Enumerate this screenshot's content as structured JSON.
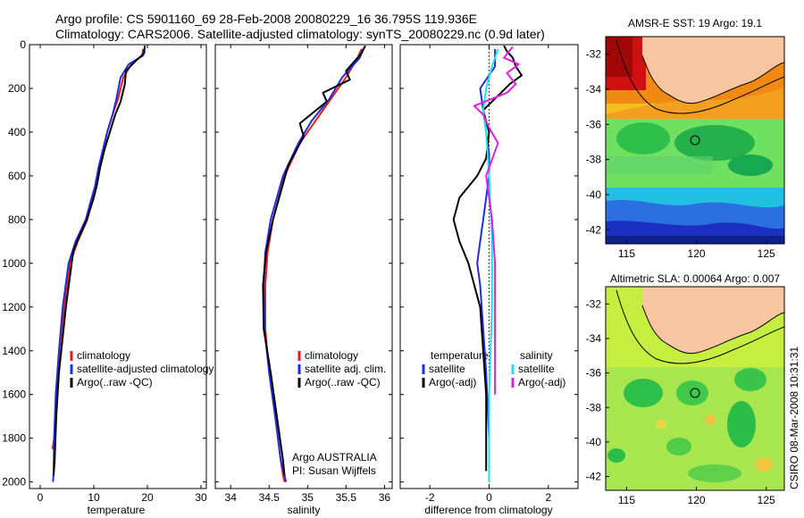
{
  "header": {
    "line1": "Argo profile: CS 5901160_69 28-Feb-2008 20080229_16 36.795S 119.936E",
    "line2": "Climatology: CARS2006. Satellite-adjusted climatology: synTS_20080229.nc (0.9d later)"
  },
  "credits": {
    "argo": "Argo AUSTRALIA",
    "pi": "PI: Susan Wijffels",
    "timestamp": "CSIRO 08-Mar-2008 10:31:31"
  },
  "colors": {
    "climatology": "#e81c1c",
    "satellite": "#1c2ee0",
    "argo": "#000000",
    "sal_satellite": "#22e0f0",
    "sal_argo": "#e020e0",
    "land": "#f7c59f"
  },
  "chart_data": [
    {
      "type": "line",
      "xlabel": "temperature",
      "x_ticks": [
        "0",
        "10",
        "20",
        "30"
      ],
      "xlim": [
        -2,
        31
      ],
      "y_ticks": [
        "0",
        "200",
        "400",
        "600",
        "800",
        "1000",
        "1200",
        "1400",
        "1600",
        "1800",
        "2000"
      ],
      "ylim": [
        2030,
        0
      ],
      "legend": [
        "climatology",
        "satellite-adjusted climatology",
        "Argo(..raw -QC)"
      ],
      "series": [
        {
          "name": "climatology",
          "color": "#e81c1c",
          "x": [
            19.2,
            19.0,
            17.0,
            15.5,
            14.5,
            13.5,
            12.5,
            11.8,
            11.0,
            10.3,
            9.8,
            8.8,
            7.0,
            5.6,
            4.5,
            3.6,
            3.0,
            2.6,
            2.3
          ],
          "y": [
            20,
            50,
            90,
            150,
            250,
            320,
            400,
            480,
            560,
            650,
            700,
            800,
            900,
            1000,
            1200,
            1400,
            1600,
            1800,
            1850
          ]
        },
        {
          "name": "satellite-adjusted climatology",
          "color": "#1c2ee0",
          "x": [
            19.4,
            19.2,
            16.5,
            15.0,
            14.2,
            13.5,
            12.5,
            11.7,
            10.9,
            10.2,
            9.6,
            8.5,
            6.6,
            5.3,
            4.2,
            3.5,
            2.9,
            2.6,
            2.5,
            2.4
          ],
          "y": [
            20,
            50,
            90,
            150,
            250,
            320,
            400,
            480,
            560,
            650,
            700,
            800,
            900,
            1000,
            1200,
            1400,
            1600,
            1800,
            1950,
            2000
          ]
        },
        {
          "name": "Argo(..raw -QC)",
          "color": "#000000",
          "x": [
            19.5,
            19.4,
            18.0,
            16.0,
            15.8,
            15.0,
            14.0,
            13.0,
            12.0,
            11.2,
            10.6,
            10.0,
            8.7,
            6.2,
            4.8,
            3.5,
            3.0,
            2.7,
            2.5
          ],
          "y": [
            5,
            40,
            70,
            120,
            180,
            260,
            320,
            400,
            480,
            560,
            640,
            700,
            800,
            940,
            1200,
            1500,
            1700,
            1900,
            1970
          ]
        }
      ]
    },
    {
      "type": "line",
      "xlabel": "salinity",
      "x_ticks": [
        "34",
        "34.5",
        "35",
        "35.5",
        "36"
      ],
      "xlim": [
        33.8,
        36.1
      ],
      "y_ticks": [],
      "ylim": [
        2030,
        0
      ],
      "legend": [
        "climatology",
        "satellite adj. clim.",
        "Argo(..raw -QC)"
      ],
      "series": [
        {
          "name": "climatology",
          "color": "#e81c1c",
          "x": [
            35.7,
            35.65,
            35.5,
            35.3,
            35.1,
            34.9,
            34.7,
            34.55,
            34.48,
            34.45,
            34.45,
            34.5,
            34.58,
            34.65,
            34.68,
            34.7
          ],
          "y": [
            20,
            60,
            150,
            250,
            350,
            450,
            600,
            800,
            950,
            1100,
            1300,
            1500,
            1700,
            1900,
            1970,
            2000
          ]
        },
        {
          "name": "satellite adj. clim.",
          "color": "#1c2ee0",
          "x": [
            35.72,
            35.68,
            35.45,
            35.28,
            35.05,
            34.88,
            34.68,
            34.52,
            34.45,
            34.43,
            34.44,
            34.5,
            34.58,
            34.65,
            34.7,
            34.72
          ],
          "y": [
            20,
            60,
            150,
            250,
            350,
            450,
            600,
            800,
            950,
            1100,
            1300,
            1500,
            1700,
            1900,
            1970,
            2000
          ]
        },
        {
          "name": "Argo(..raw -QC)",
          "color": "#000000",
          "x": [
            35.75,
            35.7,
            35.5,
            35.55,
            35.2,
            35.25,
            34.9,
            34.95,
            34.75,
            34.55,
            34.46,
            34.42,
            34.43,
            34.52,
            34.6,
            34.68,
            34.7
          ],
          "y": [
            5,
            40,
            120,
            160,
            220,
            260,
            360,
            420,
            550,
            800,
            950,
            1100,
            1300,
            1500,
            1700,
            1900,
            1970
          ]
        }
      ]
    },
    {
      "type": "line",
      "xlabel": "difference from climatology",
      "x_ticks": [
        "-2",
        "0",
        "2"
      ],
      "xlim": [
        -3,
        3
      ],
      "y_ticks": [],
      "ylim": [
        2030,
        0
      ],
      "legend": [
        "temperature",
        "satellite",
        "Argo(-adj)",
        "salinity",
        "satellite",
        "Argo(-adj)"
      ],
      "series": [
        {
          "name": "satellite",
          "color": "#1c2ee0",
          "x": [
            0.2,
            0.2,
            -0.3,
            -0.2,
            -0.1,
            0.0,
            0.0,
            -0.1,
            -0.2,
            -0.3,
            -0.4,
            -0.3,
            -0.2,
            -0.1,
            0.0,
            0.0
          ],
          "y": [
            20,
            100,
            200,
            300,
            400,
            500,
            600,
            700,
            800,
            900,
            1000,
            1100,
            1300,
            1500,
            1800,
            2000
          ]
        },
        {
          "name": "Argo(-adj)",
          "color": "#000000",
          "x": [
            0.5,
            0.6,
            0.8,
            0.9,
            1.1,
            0.7,
            0.4,
            0.1,
            -0.2,
            0.0,
            -0.1,
            -0.4,
            -1.0,
            -1.2,
            -1.0,
            -0.7,
            -0.5,
            -0.3,
            -0.2,
            -0.1,
            -0.1
          ],
          "y": [
            5,
            30,
            60,
            100,
            140,
            180,
            220,
            260,
            300,
            400,
            520,
            600,
            700,
            800,
            900,
            1000,
            1100,
            1200,
            1400,
            1600,
            1950
          ]
        },
        {
          "name": "salinity satellite",
          "color": "#22e0f0",
          "x": [
            0.3,
            0.1,
            -0.1,
            -0.2,
            -0.1,
            0.0,
            0.1,
            0.1,
            0.0,
            0.0
          ],
          "y": [
            20,
            100,
            200,
            300,
            400,
            600,
            900,
            1200,
            1600,
            2000
          ]
        },
        {
          "name": "salinity Argo(-adj)",
          "color": "#e020e0",
          "x": [
            0.8,
            0.5,
            1.0,
            0.6,
            0.9,
            0.6,
            -0.5,
            -0.2,
            0.0,
            0.3,
            -0.1,
            0.1,
            0.2,
            0.2,
            0.2
          ],
          "y": [
            10,
            60,
            90,
            130,
            180,
            220,
            280,
            320,
            380,
            450,
            600,
            800,
            1000,
            1300,
            1600
          ]
        }
      ]
    },
    {
      "type": "heatmap",
      "title": "AMSR-E SST: 19 Argo: 19.1",
      "x_ticks": [
        "115",
        "120",
        "125"
      ],
      "xlim": [
        113.5,
        126.3
      ],
      "y_ticks": [
        "-32",
        "-34",
        "-36",
        "-38",
        "-40",
        "-42"
      ],
      "ylim": [
        -42.8,
        -31
      ],
      "marker": {
        "lon": 119.936,
        "lat": -36.795
      }
    },
    {
      "type": "heatmap",
      "title": "Altimetric SLA: 0.00064 Argo: 0.007",
      "x_ticks": [
        "115",
        "120",
        "125"
      ],
      "xlim": [
        113.5,
        126.3
      ],
      "y_ticks": [
        "-32",
        "-34",
        "-36",
        "-38",
        "-40",
        "-42"
      ],
      "ylim": [
        -42.8,
        -31
      ],
      "marker": {
        "lon": 119.936,
        "lat": -36.795
      }
    }
  ]
}
